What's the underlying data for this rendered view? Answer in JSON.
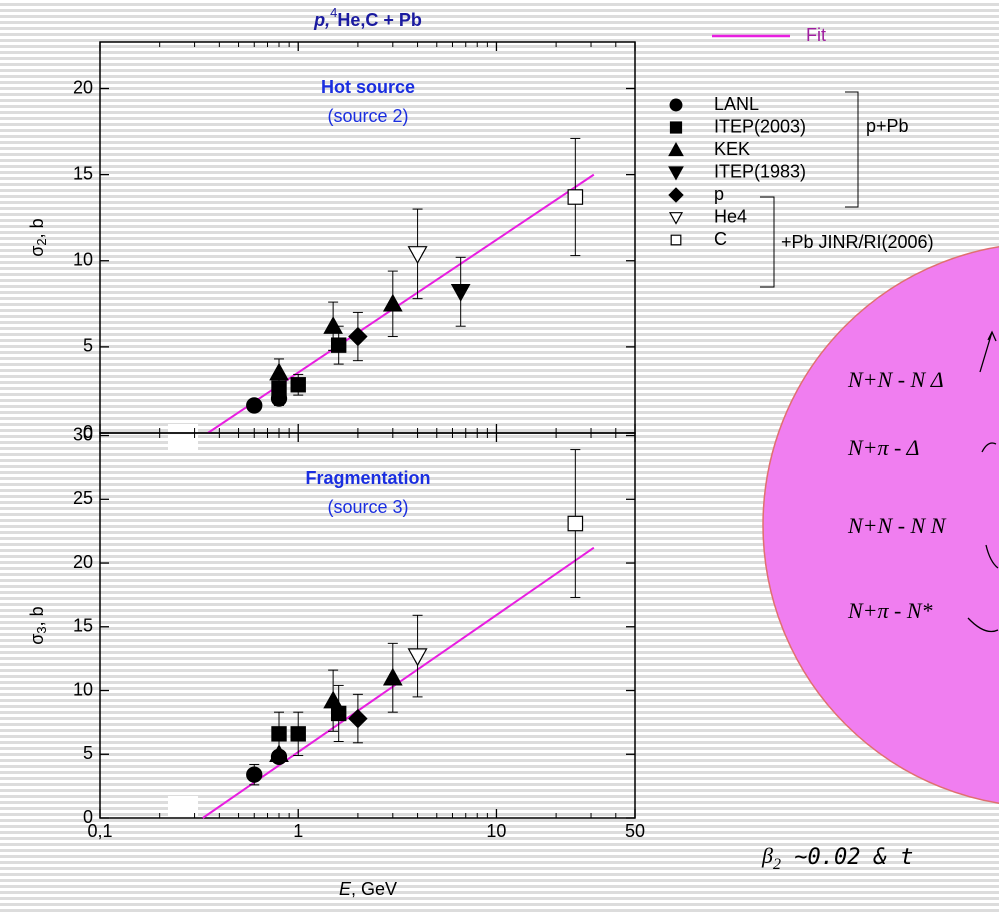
{
  "chart_data": [
    {
      "type": "scatter",
      "title": {
        "particle": "p,",
        "superscript": "4",
        "rest": "He,C + Pb"
      },
      "ylabel": {
        "symbol": "σ",
        "sub": "2",
        "unit": ", b"
      },
      "annotation": [
        "Hot source",
        "(source 2)"
      ],
      "log_x": true,
      "xlim": [
        0.1,
        50
      ],
      "ylim": [
        0,
        22.7
      ],
      "xticks": [
        {
          "value": 0.1,
          "label": "0,1"
        },
        1,
        10,
        50
      ],
      "show_x_tick_labels": false,
      "xminorticks": [
        0.2,
        0.3,
        0.4,
        0.5,
        0.6,
        0.7,
        0.8,
        0.9,
        2,
        3,
        4,
        5,
        6,
        7,
        8,
        9,
        20,
        30,
        40
      ],
      "yticks": [
        0,
        5,
        10,
        15,
        20
      ],
      "fit": {
        "name": "Fit",
        "color": "#e81ee0",
        "x": [
          0.35,
          31
        ],
        "values": [
          0,
          15
        ]
      },
      "legend_brackets": [
        "p+Pb",
        "+Pb JINR/RI(2006)"
      ],
      "series": [
        {
          "name": "LANL",
          "marker": "circle",
          "open": false,
          "x": [
            0.6,
            0.8
          ],
          "values": [
            1.6,
            2.0
          ],
          "errors": [
            null,
            0.4
          ]
        },
        {
          "name": "ITEP(2003)",
          "marker": "square",
          "open": false,
          "x": [
            0.8,
            1.0,
            1.6
          ],
          "values": [
            2.6,
            2.8,
            5.1
          ],
          "errors": [
            null,
            0.6,
            1.1
          ]
        },
        {
          "name": "KEK",
          "marker": "triangle-up",
          "open": false,
          "x": [
            0.8,
            1.5,
            3
          ],
          "values": [
            3.5,
            6.2,
            7.5
          ],
          "errors": [
            0.8,
            1.4,
            1.9
          ]
        },
        {
          "name": "ITEP(1983)",
          "marker": "triangle-down",
          "open": false,
          "x": [
            6.6
          ],
          "values": [
            8.2
          ],
          "errors": [
            2.0
          ]
        },
        {
          "name": "p",
          "marker": "diamond",
          "open": false,
          "x": [
            2
          ],
          "values": [
            5.6
          ],
          "errors": [
            1.4
          ]
        },
        {
          "name": "He4",
          "marker": "triangle-down",
          "open": true,
          "x": [
            4
          ],
          "values": [
            10.4
          ],
          "errors": [
            2.6
          ]
        },
        {
          "name": "C",
          "marker": "square",
          "open": true,
          "x": [
            25
          ],
          "values": [
            13.7
          ],
          "errors": [
            3.4
          ]
        }
      ]
    },
    {
      "type": "scatter",
      "ylabel": {
        "symbol": "σ",
        "sub": "3",
        "unit": ", b"
      },
      "xlabel": {
        "var": "E",
        "unit": ", GeV"
      },
      "annotation": [
        "Fragmentation",
        "(source 3)"
      ],
      "log_x": true,
      "xlim": [
        0.1,
        50
      ],
      "ylim": [
        0,
        30.2
      ],
      "xticks": [
        {
          "value": 0.1,
          "label": "0,1"
        },
        1,
        10,
        50
      ],
      "show_x_tick_labels": true,
      "xminorticks": [
        0.2,
        0.3,
        0.4,
        0.5,
        0.6,
        0.7,
        0.8,
        0.9,
        2,
        3,
        4,
        5,
        6,
        7,
        8,
        9,
        20,
        30,
        40
      ],
      "yticks": [
        0,
        5,
        10,
        15,
        20,
        25,
        30
      ],
      "fit": {
        "color": "#e81ee0",
        "x": [
          0.33,
          31
        ],
        "values": [
          0,
          21.2
        ]
      },
      "series": [
        {
          "marker": "circle",
          "open": false,
          "x": [
            0.6,
            0.8
          ],
          "values": [
            3.4,
            4.8
          ],
          "errors": [
            0.8,
            null
          ]
        },
        {
          "marker": "square",
          "open": false,
          "x": [
            0.8,
            1.0,
            1.6
          ],
          "values": [
            6.6,
            6.6,
            8.2
          ],
          "errors": [
            1.7,
            1.7,
            2.2
          ]
        },
        {
          "marker": "triangle-up",
          "open": false,
          "x": [
            0.8,
            1.5,
            3
          ],
          "values": [
            5.0,
            9.2,
            11.0
          ],
          "errors": [
            null,
            2.4,
            2.7
          ]
        },
        {
          "marker": "triangle-down",
          "open": false,
          "x": [],
          "values": [],
          "errors": []
        },
        {
          "marker": "diamond",
          "open": false,
          "x": [
            2
          ],
          "values": [
            7.8
          ],
          "errors": [
            1.9
          ]
        },
        {
          "marker": "triangle-down",
          "open": true,
          "x": [
            4
          ],
          "values": [
            12.7
          ],
          "errors": [
            3.2
          ]
        },
        {
          "marker": "square",
          "open": true,
          "x": [
            25
          ],
          "values": [
            23.1
          ],
          "errors": [
            5.8
          ]
        }
      ]
    }
  ],
  "diagram": {
    "lines": [
      "N+N - N Δ",
      "N+π - Δ",
      "N+N - N N",
      "N+π - N*"
    ],
    "caption": {
      "symbol": "β",
      "sub": "2",
      "rest": " ~0.02 & t"
    }
  }
}
